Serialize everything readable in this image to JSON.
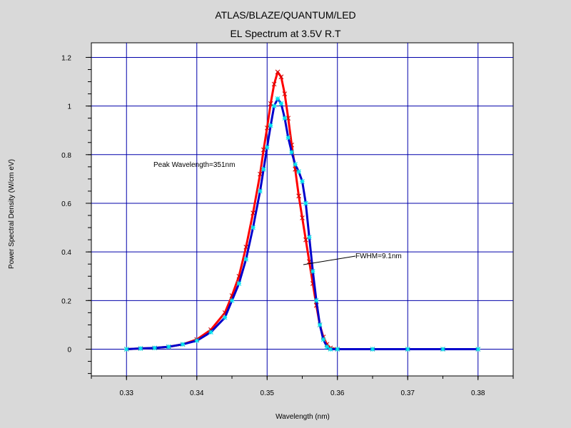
{
  "chart_data": {
    "type": "line",
    "title": "ATLAS/BLAZE/QUANTUM/LED",
    "subtitle": "EL Spectrum at 3.5V R.T",
    "xlabel": "Wavelength (nm)",
    "ylabel": "Power Spectral Density (W/cm eV)",
    "xlim": [
      0.325,
      0.385
    ],
    "ylim": [
      -0.11,
      1.26
    ],
    "x_ticks": [
      "0.33",
      "0.34",
      "0.35",
      "0.36",
      "0.37",
      "0.38"
    ],
    "y_ticks": [
      "0",
      "0.2",
      "0.4",
      "0.6",
      "0.8",
      "1",
      "1.2"
    ],
    "grid": true,
    "annotations": {
      "peak": "Peak Wavelength=351nm",
      "fwhm": "FWHM=9.1nm"
    },
    "series": [
      {
        "color": "#ff0000",
        "marker_color": "#cc0000",
        "x": [
          0.33,
          0.332,
          0.334,
          0.336,
          0.338,
          0.34,
          0.342,
          0.344,
          0.345,
          0.346,
          0.347,
          0.348,
          0.349,
          0.3495,
          0.35,
          0.3505,
          0.351,
          0.3515,
          0.352,
          0.3525,
          0.353,
          0.3535,
          0.354,
          0.3545,
          0.355,
          0.3555,
          0.356,
          0.3565,
          0.357,
          0.3575,
          0.358,
          0.3585,
          0.359,
          0.36,
          0.365,
          0.37,
          0.375,
          0.38
        ],
        "y": [
          0.0,
          0.003,
          0.005,
          0.01,
          0.02,
          0.04,
          0.08,
          0.15,
          0.22,
          0.3,
          0.42,
          0.56,
          0.72,
          0.82,
          0.91,
          1.01,
          1.09,
          1.14,
          1.12,
          1.05,
          0.95,
          0.84,
          0.74,
          0.63,
          0.54,
          0.45,
          0.36,
          0.27,
          0.18,
          0.1,
          0.05,
          0.02,
          0.005,
          0.0,
          0.0,
          0.0,
          0.0,
          0.0
        ]
      },
      {
        "color": "#0000cc",
        "marker_color": "#00e5ee",
        "x": [
          0.33,
          0.332,
          0.334,
          0.336,
          0.338,
          0.34,
          0.342,
          0.344,
          0.345,
          0.346,
          0.347,
          0.348,
          0.349,
          0.3495,
          0.35,
          0.3505,
          0.351,
          0.3515,
          0.352,
          0.3525,
          0.353,
          0.3535,
          0.354,
          0.3545,
          0.355,
          0.3555,
          0.356,
          0.3565,
          0.357,
          0.3575,
          0.358,
          0.3585,
          0.359,
          0.36,
          0.365,
          0.37,
          0.375,
          0.38
        ],
        "y": [
          0.0,
          0.003,
          0.005,
          0.01,
          0.02,
          0.035,
          0.07,
          0.13,
          0.2,
          0.27,
          0.37,
          0.5,
          0.65,
          0.74,
          0.83,
          0.92,
          1.0,
          1.03,
          1.01,
          0.95,
          0.87,
          0.81,
          0.76,
          0.73,
          0.69,
          0.6,
          0.46,
          0.32,
          0.2,
          0.1,
          0.04,
          0.01,
          0.0,
          0.0,
          0.0,
          0.0,
          0.0,
          0.0
        ]
      }
    ]
  }
}
